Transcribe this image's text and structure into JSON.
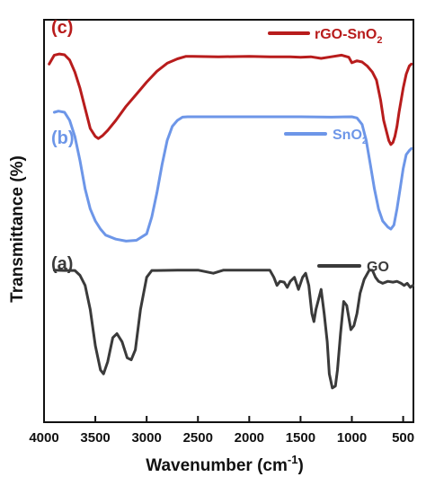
{
  "chart_data": {
    "type": "line",
    "xlabel": "Wavenumber (cm",
    "xlabel_sup": "-1",
    "xlabel_end": ")",
    "ylabel": "Transmittance (%)",
    "xlim": [
      4000,
      400
    ],
    "x_reversed": true,
    "ylim": [
      0,
      100
    ],
    "y_ticks_shown": false,
    "x_ticks": [
      {
        "v": 4000,
        "label": "4000"
      },
      {
        "v": 3500,
        "label": "3500"
      },
      {
        "v": 3000,
        "label": "3000"
      },
      {
        "v": 2500,
        "label": "2500"
      },
      {
        "v": 2000,
        "label": "2000"
      },
      {
        "v": 1500,
        "label": "1500"
      },
      {
        "v": 1000,
        "label": "1000"
      },
      {
        "v": 500,
        "label": "500"
      }
    ],
    "series": [
      {
        "name": "GO",
        "label_prefix": "GO",
        "label_sub": "",
        "panel": "(a)",
        "color": "#3a3a3a",
        "points": [
          [
            3900,
            37.8
          ],
          [
            3800,
            37.7
          ],
          [
            3700,
            37.7
          ],
          [
            3650,
            36.5
          ],
          [
            3600,
            34
          ],
          [
            3550,
            28
          ],
          [
            3500,
            19
          ],
          [
            3450,
            13
          ],
          [
            3420,
            12
          ],
          [
            3380,
            15
          ],
          [
            3330,
            21
          ],
          [
            3290,
            22
          ],
          [
            3240,
            20
          ],
          [
            3190,
            16
          ],
          [
            3150,
            15.5
          ],
          [
            3110,
            18
          ],
          [
            3060,
            28
          ],
          [
            3000,
            36
          ],
          [
            2950,
            37.7
          ],
          [
            2900,
            37.7
          ],
          [
            2700,
            37.8
          ],
          [
            2500,
            37.8
          ],
          [
            2350,
            37
          ],
          [
            2250,
            37.8
          ],
          [
            2000,
            37.8
          ],
          [
            1800,
            37.8
          ],
          [
            1760,
            36
          ],
          [
            1730,
            34
          ],
          [
            1700,
            35
          ],
          [
            1660,
            34.8
          ],
          [
            1630,
            33.5
          ],
          [
            1600,
            35
          ],
          [
            1560,
            36
          ],
          [
            1520,
            33
          ],
          [
            1480,
            36
          ],
          [
            1450,
            37
          ],
          [
            1420,
            34
          ],
          [
            1390,
            27
          ],
          [
            1370,
            25
          ],
          [
            1350,
            28
          ],
          [
            1320,
            31
          ],
          [
            1300,
            33
          ],
          [
            1270,
            27
          ],
          [
            1240,
            20
          ],
          [
            1220,
            12
          ],
          [
            1190,
            8.5
          ],
          [
            1160,
            9
          ],
          [
            1140,
            13
          ],
          [
            1110,
            22
          ],
          [
            1080,
            30
          ],
          [
            1050,
            29
          ],
          [
            1010,
            23
          ],
          [
            980,
            24
          ],
          [
            950,
            27
          ],
          [
            920,
            32
          ],
          [
            880,
            35.5
          ],
          [
            830,
            37.8
          ],
          [
            800,
            37.8
          ],
          [
            770,
            36
          ],
          [
            740,
            35
          ],
          [
            700,
            34.5
          ],
          [
            650,
            35
          ],
          [
            600,
            34.8
          ],
          [
            560,
            35
          ],
          [
            520,
            34.5
          ],
          [
            490,
            34
          ],
          [
            460,
            34.5
          ],
          [
            430,
            33.5
          ],
          [
            405,
            34
          ]
        ]
      },
      {
        "name": "SnO2",
        "label_prefix": "SnO",
        "label_sub": "2",
        "panel": "(b)",
        "color": "#6d96e8",
        "points": [
          [
            3900,
            77
          ],
          [
            3860,
            77.3
          ],
          [
            3800,
            77
          ],
          [
            3750,
            75
          ],
          [
            3700,
            71
          ],
          [
            3650,
            65
          ],
          [
            3600,
            58
          ],
          [
            3550,
            53
          ],
          [
            3500,
            50
          ],
          [
            3450,
            48
          ],
          [
            3400,
            46.5
          ],
          [
            3300,
            45.5
          ],
          [
            3200,
            45
          ],
          [
            3100,
            45.2
          ],
          [
            3000,
            46.8
          ],
          [
            2950,
            51
          ],
          [
            2900,
            57
          ],
          [
            2850,
            64
          ],
          [
            2800,
            70
          ],
          [
            2750,
            73.5
          ],
          [
            2700,
            75
          ],
          [
            2650,
            75.8
          ],
          [
            2600,
            75.9
          ],
          [
            2400,
            75.9
          ],
          [
            2000,
            75.9
          ],
          [
            1500,
            75.9
          ],
          [
            1200,
            75.8
          ],
          [
            1000,
            75.9
          ],
          [
            950,
            75.6
          ],
          [
            900,
            74
          ],
          [
            860,
            70
          ],
          [
            820,
            64
          ],
          [
            780,
            58
          ],
          [
            740,
            53
          ],
          [
            700,
            50
          ],
          [
            650,
            48.5
          ],
          [
            620,
            48
          ],
          [
            590,
            49
          ],
          [
            560,
            53
          ],
          [
            530,
            58
          ],
          [
            500,
            63
          ],
          [
            470,
            66.5
          ],
          [
            440,
            67.5
          ],
          [
            420,
            68
          ]
        ]
      },
      {
        "name": "rGO-SnO2",
        "label_prefix": "rGO-SnO",
        "label_sub": "2",
        "panel": "(c)",
        "color": "#b81c1c",
        "points": [
          [
            3950,
            89
          ],
          [
            3900,
            91.2
          ],
          [
            3850,
            91.5
          ],
          [
            3800,
            91.3
          ],
          [
            3750,
            90
          ],
          [
            3700,
            87
          ],
          [
            3650,
            83
          ],
          [
            3600,
            78
          ],
          [
            3550,
            73
          ],
          [
            3500,
            71
          ],
          [
            3470,
            70.5
          ],
          [
            3430,
            71.2
          ],
          [
            3380,
            72.5
          ],
          [
            3300,
            75
          ],
          [
            3200,
            78.5
          ],
          [
            3100,
            81.5
          ],
          [
            3000,
            84.5
          ],
          [
            2900,
            87.2
          ],
          [
            2800,
            89.2
          ],
          [
            2700,
            90.3
          ],
          [
            2620,
            90.9
          ],
          [
            2550,
            90.9
          ],
          [
            2300,
            90.8
          ],
          [
            2000,
            90.9
          ],
          [
            1800,
            90.8
          ],
          [
            1600,
            90.8
          ],
          [
            1500,
            90.7
          ],
          [
            1400,
            90.8
          ],
          [
            1300,
            90.4
          ],
          [
            1200,
            90.8
          ],
          [
            1100,
            91.2
          ],
          [
            1030,
            90.7
          ],
          [
            1000,
            89.3
          ],
          [
            950,
            89.8
          ],
          [
            900,
            89.5
          ],
          [
            850,
            88.5
          ],
          [
            800,
            87
          ],
          [
            760,
            85
          ],
          [
            720,
            80
          ],
          [
            690,
            75
          ],
          [
            660,
            72
          ],
          [
            640,
            70
          ],
          [
            620,
            69
          ],
          [
            600,
            69.5
          ],
          [
            580,
            71
          ],
          [
            560,
            73.5
          ],
          [
            540,
            77
          ],
          [
            520,
            80
          ],
          [
            500,
            83
          ],
          [
            470,
            86.5
          ],
          [
            440,
            88.5
          ],
          [
            420,
            89
          ]
        ]
      }
    ]
  }
}
